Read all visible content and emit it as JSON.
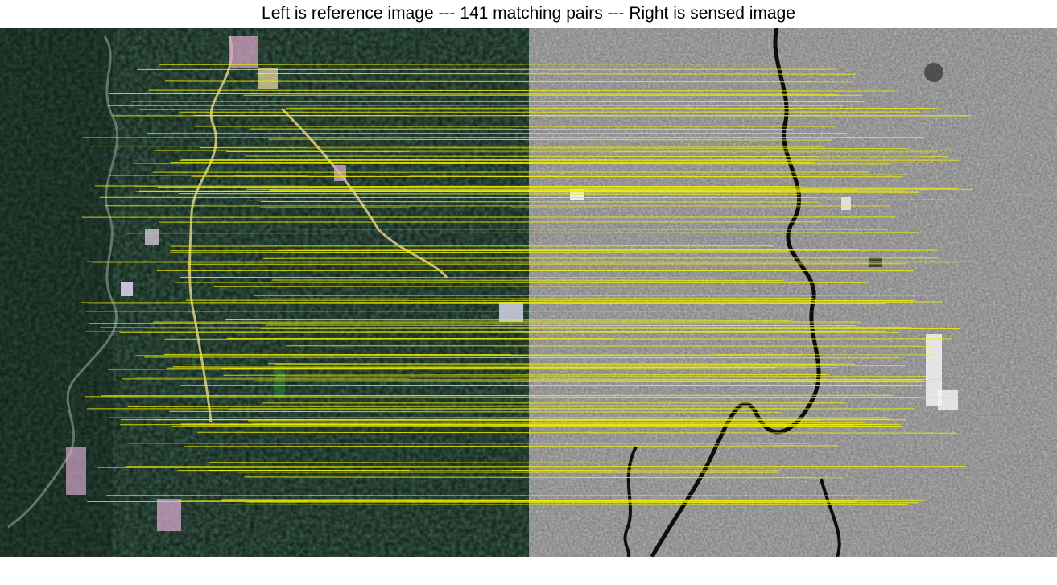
{
  "title": "Left is reference image --- 141 matching pairs --- Right is sensed image",
  "left_panel": {
    "kind": "satellite-optical",
    "description_role": "reference image",
    "dominant_colors": [
      "#17291f",
      "#0f1d16",
      "#2b3f33"
    ]
  },
  "right_panel": {
    "kind": "satellite-grayscale",
    "description_role": "sensed image",
    "dominant_colors": [
      "#7d7d7d",
      "#a0a0a0",
      "#505050"
    ]
  },
  "matches": {
    "count_label": "141",
    "line_color": "#f0f000"
  }
}
